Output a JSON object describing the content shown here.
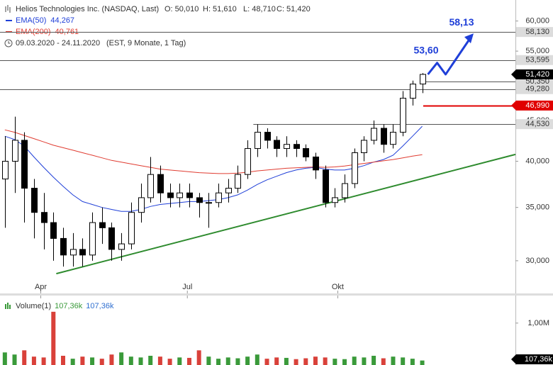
{
  "chart_data": [
    {
      "type": "candlestick",
      "title": "Helios Technologies Inc. (NASDAQ, Last)",
      "quote": [
        {
          "value": 50.01,
          "label": "O: 50,010"
        },
        {
          "value": 51.61,
          "label": "H: 51,610"
        },
        {
          "value": 48.71,
          "label": "L: 48,710"
        },
        {
          "value": 51.42,
          "label": "C: 51,420"
        }
      ],
      "period": "09.03.2020 - 24.11.2020",
      "period_note": "(EST, 9 Monate, 1 Tag)",
      "open": [
        38,
        40,
        42.5,
        37,
        34.5,
        33.5,
        32,
        30.5,
        31,
        30.5,
        33.5,
        33,
        31,
        31.5,
        34.5,
        36,
        38.5,
        36.5,
        36,
        36.5,
        36,
        35.5,
        35.5,
        36.5,
        37,
        38.5,
        41.5,
        43.5,
        42.5,
        41.5,
        42,
        41.5,
        40.5,
        39,
        35.5,
        36,
        37.5,
        41,
        42.5,
        44,
        42,
        43.5,
        48,
        50.01
      ],
      "high": [
        43,
        45.5,
        43.5,
        38,
        36.5,
        34.5,
        33,
        32.5,
        32,
        34.5,
        35,
        33.5,
        32.5,
        35.5,
        37.5,
        40.5,
        39.5,
        37.5,
        37.5,
        37.5,
        36.5,
        36.5,
        37.5,
        38,
        39.5,
        42.5,
        44.5,
        44,
        43,
        43,
        42.5,
        42,
        41,
        39.5,
        37,
        38.5,
        41.5,
        43,
        45,
        44.5,
        44.5,
        49,
        50.5,
        51.61
      ],
      "low": [
        33,
        36.5,
        33.5,
        32,
        31,
        30,
        29.5,
        29.5,
        29.5,
        30,
        31.5,
        30,
        30,
        31,
        33.5,
        35.5,
        35.5,
        35,
        35,
        35,
        34,
        33,
        35,
        35.5,
        36.5,
        38,
        40.5,
        41.5,
        40.5,
        40.5,
        40.5,
        40,
        38,
        35,
        35,
        35.5,
        37,
        40,
        42,
        41,
        41.5,
        43,
        47,
        48.71
      ],
      "close": [
        40,
        42.5,
        37,
        34.5,
        33.5,
        32,
        30.5,
        31,
        30.5,
        33.5,
        33,
        31,
        31.5,
        34.5,
        36,
        38.5,
        36.5,
        36,
        36.5,
        36,
        35.5,
        35.5,
        36.5,
        37,
        38.5,
        41.5,
        43.5,
        42.5,
        41.5,
        42,
        41.5,
        40.5,
        39,
        35.5,
        36,
        37.5,
        41,
        42.5,
        44,
        42,
        43.5,
        48,
        50,
        51.42
      ],
      "last_label": "51,420",
      "up_color": "#ffffff",
      "down_color": "#000000",
      "series": [
        {
          "name": "EMA(50)",
          "color": "#1f3fd8",
          "last_label": "44,267",
          "values": [
            43,
            42.6,
            41.8,
            40.5,
            39.3,
            38.2,
            37.2,
            36.3,
            35.6,
            35.3,
            35,
            34.8,
            34.6,
            34.6,
            34.8,
            35.1,
            35.3,
            35.4,
            35.5,
            35.6,
            35.6,
            35.7,
            35.8,
            36,
            36.3,
            36.8,
            37.4,
            37.9,
            38.3,
            38.7,
            39,
            39.2,
            39.3,
            39.1,
            39,
            39,
            39.2,
            39.5,
            39.9,
            40.2,
            40.7,
            41.8,
            43,
            44.267
          ]
        },
        {
          "name": "EMA(200)",
          "color": "#e03c31",
          "last_label": "40,761",
          "values": [
            43.8,
            43.5,
            43.1,
            42.7,
            42.3,
            41.9,
            41.6,
            41.3,
            41,
            40.7,
            40.4,
            40.1,
            39.9,
            39.7,
            39.5,
            39.3,
            39.1,
            39,
            38.9,
            38.8,
            38.7,
            38.65,
            38.6,
            38.6,
            38.65,
            38.75,
            38.9,
            39,
            39.1,
            39.2,
            39.25,
            39.3,
            39.35,
            39.3,
            39.35,
            39.45,
            39.6,
            39.75,
            39.9,
            40.05,
            40.2,
            40.4,
            40.6,
            40.761
          ]
        }
      ],
      "levels": [
        {
          "value": 58.13,
          "label": "58,130",
          "x_start": -0.5,
          "color": "#555555"
        },
        {
          "value": 53.595,
          "label": "53,595",
          "x_start": -0.5,
          "color": "#555555"
        },
        {
          "value": 50.35,
          "label": "50,350",
          "x_start": 43.3,
          "color": "#555555"
        },
        {
          "value": 49.28,
          "label": "49,280",
          "x_start": -0.5,
          "color": "#555555"
        },
        {
          "value": 46.99,
          "label": "46,990",
          "x_start": 43.1,
          "color": "#e00000"
        },
        {
          "value": 44.53,
          "label": "44,530",
          "x_start": 25.6,
          "color": "#555555"
        }
      ],
      "trendline": {
        "x": [
          5.3,
          52.6
        ],
        "values": [
          28.9,
          40.8
        ],
        "color": "#2e8b2e"
      },
      "annotations": [
        {
          "value": 53.6,
          "label": "53,60"
        },
        {
          "value": 58.13,
          "label": "58,13"
        }
      ],
      "annotation_color": "#1f3fd8",
      "xlim": [
        -0.5,
        52.6
      ],
      "xticks": [
        {
          "value": 3.7,
          "label": "Apr"
        },
        {
          "value": 18.8,
          "label": "Jul"
        },
        {
          "value": 34.3,
          "label": "Okt"
        }
      ],
      "ylim": [
        27.52,
        63.76
      ],
      "log_y": true,
      "yticks": [
        {
          "value": 30,
          "label": "30,000"
        },
        {
          "value": 35,
          "label": "35,000"
        },
        {
          "value": 40,
          "label": "40,000"
        },
        {
          "value": 45,
          "label": "45,000"
        },
        {
          "value": 55,
          "label": "55,000"
        },
        {
          "value": 60,
          "label": "60,000"
        }
      ]
    },
    {
      "type": "bar",
      "title": "Volume(1)",
      "values": [
        300000,
        250000,
        350000,
        200000,
        180000,
        1270000,
        220000,
        150000,
        200000,
        180000,
        150000,
        250000,
        300000,
        200000,
        180000,
        220000,
        200000,
        150000,
        180000,
        170000,
        350000,
        200000,
        150000,
        180000,
        160000,
        200000,
        250000,
        150000,
        180000,
        170000,
        140000,
        160000,
        200000,
        180000,
        150000,
        140000,
        200000,
        180000,
        220000,
        160000,
        200000,
        180000,
        150000,
        107360
      ],
      "last_label": "107,36k",
      "up_color": "#3a9a3a",
      "down_color": "#d9413a",
      "label_color": "#3a9a3a",
      "label_color_2": "#2f6fd0",
      "ylim": [
        0,
        1640000
      ],
      "yticks": [
        {
          "value": 1000000,
          "label": "1,00M"
        }
      ]
    }
  ]
}
